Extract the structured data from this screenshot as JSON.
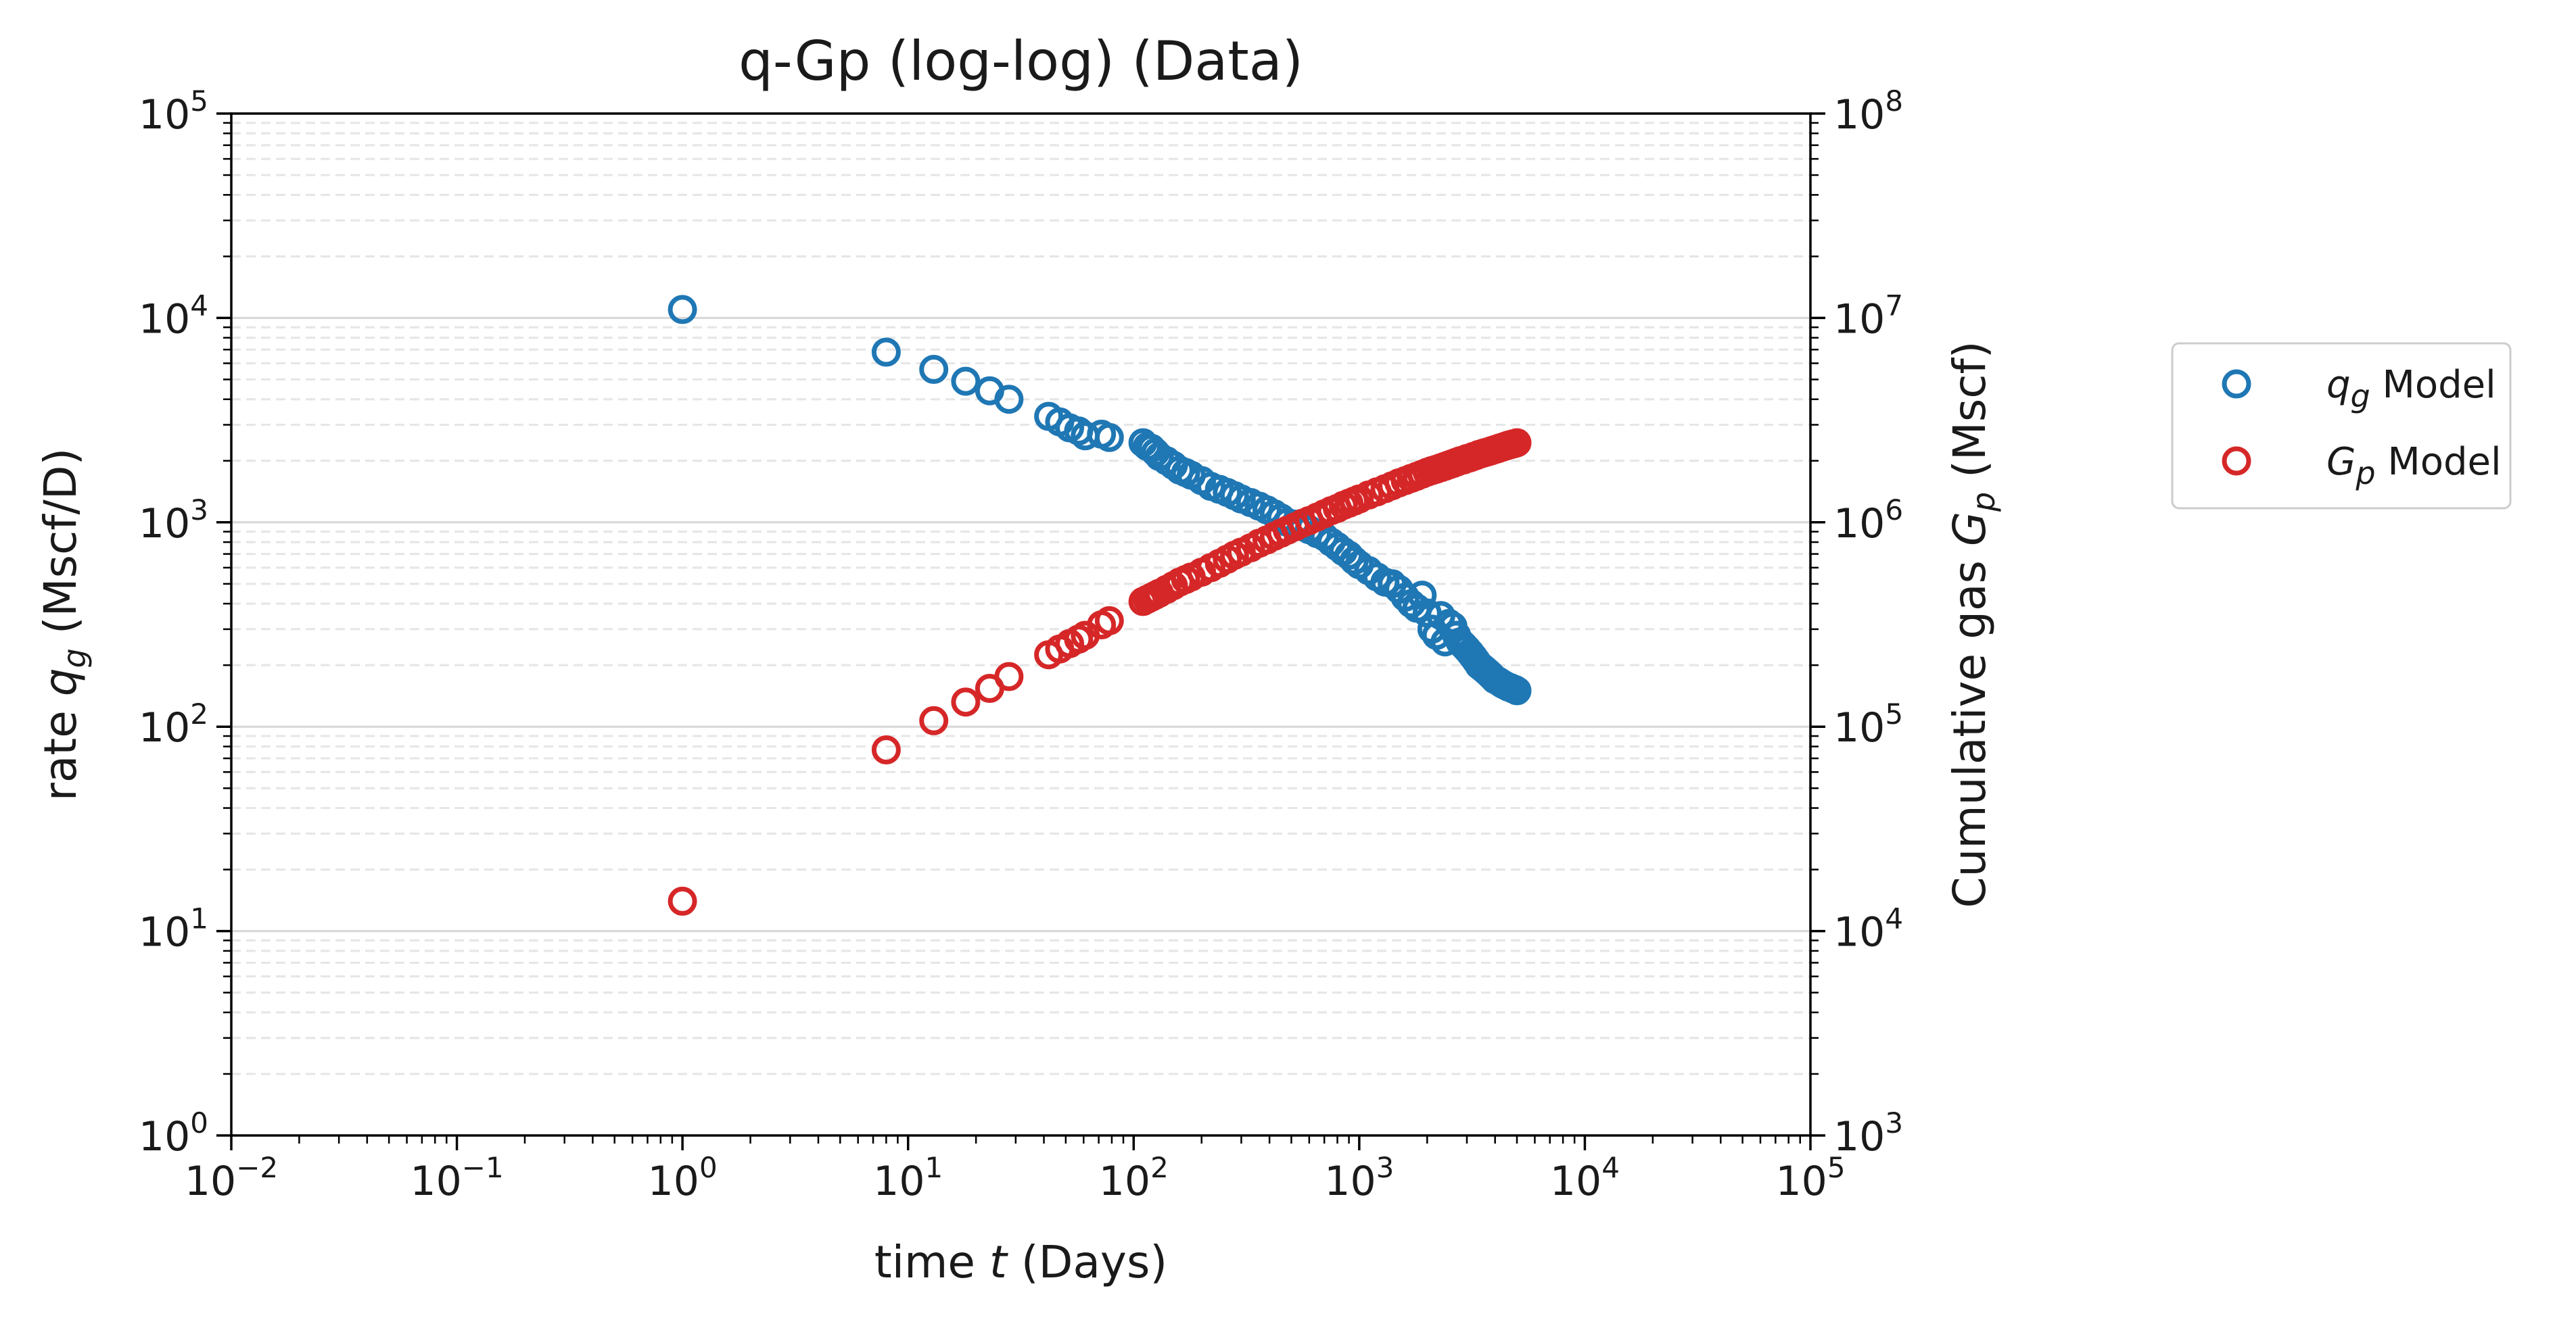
{
  "chart_data": {
    "type": "scatter",
    "title": "q-Gp (log-log) (Data)",
    "xlabel": {
      "prefix": "time ",
      "var": "t",
      "sub": "",
      "suffix": " (Days)"
    },
    "ylabel_left": {
      "prefix": "rate ",
      "var": "q",
      "sub": "g",
      "suffix": " (Mscf/D)"
    },
    "ylabel_right": {
      "prefix": "Cumulative gas ",
      "var": "G",
      "sub": "p",
      "suffix": " (Mscf)"
    },
    "x_scale": "log",
    "y_scale": "log",
    "xlim": [
      0.01,
      100000
    ],
    "ylim_left": [
      1,
      100000
    ],
    "ylim_right": [
      1000,
      100000000
    ],
    "x_ticks": [
      {
        "base": "10",
        "exp": "−2"
      },
      {
        "base": "10",
        "exp": "−1"
      },
      {
        "base": "10",
        "exp": "0"
      },
      {
        "base": "10",
        "exp": "1"
      },
      {
        "base": "10",
        "exp": "2"
      },
      {
        "base": "10",
        "exp": "3"
      },
      {
        "base": "10",
        "exp": "4"
      },
      {
        "base": "10",
        "exp": "5"
      }
    ],
    "y_left_ticks": [
      {
        "base": "10",
        "exp": "0"
      },
      {
        "base": "10",
        "exp": "1"
      },
      {
        "base": "10",
        "exp": "2"
      },
      {
        "base": "10",
        "exp": "3"
      },
      {
        "base": "10",
        "exp": "4"
      },
      {
        "base": "10",
        "exp": "5"
      }
    ],
    "y_right_ticks": [
      {
        "base": "10",
        "exp": "3"
      },
      {
        "base": "10",
        "exp": "4"
      },
      {
        "base": "10",
        "exp": "5"
      },
      {
        "base": "10",
        "exp": "6"
      },
      {
        "base": "10",
        "exp": "7"
      },
      {
        "base": "10",
        "exp": "8"
      }
    ],
    "grid": true,
    "legend_position": "outside-right",
    "series": [
      {
        "name_var": "q",
        "name_sub": "g",
        "name_suffix": " Model",
        "axis": "left",
        "color": "#1f77b4",
        "marker": "open-circle",
        "x": [
          1,
          8,
          13,
          18,
          23,
          28,
          42,
          47,
          52,
          57,
          61,
          72,
          78,
          110,
          115,
          120,
          125,
          130,
          140,
          150,
          160,
          170,
          180,
          200,
          220,
          240,
          260,
          280,
          300,
          330,
          360,
          390,
          420,
          450,
          480,
          520,
          560,
          600,
          650,
          700,
          750,
          800,
          850,
          900,
          950,
          1000,
          1100,
          1200,
          1300,
          1400,
          1500,
          1600,
          1700,
          1800,
          1900,
          2000,
          2100,
          2200,
          2300,
          2400,
          2500,
          2600,
          2700,
          2800,
          2900,
          3000,
          3100,
          3200,
          3300,
          3400,
          3500,
          3600,
          3700,
          3800,
          3900,
          4000,
          4100,
          4200,
          4300,
          4400,
          4500,
          4600,
          4700,
          4800,
          4900,
          5000
        ],
        "y": [
          11000,
          6800,
          5600,
          4900,
          4400,
          4000,
          3300,
          3100,
          2900,
          2800,
          2650,
          2700,
          2600,
          2450,
          2350,
          2300,
          2200,
          2100,
          2000,
          1900,
          1800,
          1750,
          1700,
          1600,
          1500,
          1450,
          1400,
          1350,
          1300,
          1250,
          1200,
          1150,
          1100,
          1050,
          1000,
          980,
          950,
          920,
          880,
          850,
          800,
          760,
          720,
          690,
          650,
          620,
          580,
          540,
          510,
          500,
          470,
          430,
          400,
          380,
          440,
          360,
          300,
          280,
          350,
          260,
          320,
          310,
          280,
          260,
          250,
          240,
          230,
          220,
          210,
          200,
          195,
          190,
          185,
          180,
          175,
          170,
          168,
          165,
          162,
          160,
          158,
          156,
          155,
          153,
          152,
          150
        ]
      },
      {
        "name_var": "G",
        "name_sub": "p",
        "name_suffix": " Model",
        "axis": "right",
        "color": "#d62728",
        "marker": "open-circle",
        "x": [
          1,
          8,
          13,
          18,
          23,
          28,
          42,
          47,
          52,
          57,
          61,
          72,
          78,
          110,
          115,
          120,
          125,
          130,
          140,
          150,
          160,
          170,
          180,
          200,
          220,
          240,
          260,
          280,
          300,
          330,
          360,
          390,
          420,
          450,
          480,
          520,
          560,
          600,
          650,
          700,
          750,
          800,
          850,
          900,
          950,
          1000,
          1100,
          1200,
          1300,
          1400,
          1500,
          1600,
          1700,
          1800,
          1900,
          2000,
          2100,
          2200,
          2300,
          2400,
          2500,
          2600,
          2700,
          2800,
          2900,
          3000,
          3100,
          3200,
          3300,
          3400,
          3500,
          3600,
          3700,
          3800,
          3900,
          4000,
          4100,
          4200,
          4300,
          4400,
          4500,
          4600,
          4700,
          4800,
          4900,
          5000
        ],
        "y": [
          14000,
          77000,
          107000,
          132000,
          154000,
          176000,
          225000,
          240000,
          255000,
          268000,
          280000,
          315000,
          330000,
          410000,
          420000,
          430000,
          440000,
          450000,
          470000,
          490000,
          510000,
          525000,
          540000,
          570000,
          600000,
          630000,
          660000,
          690000,
          715000,
          750000,
          790000,
          820000,
          855000,
          885000,
          915000,
          950000,
          990000,
          1020000,
          1060000,
          1100000,
          1140000,
          1170000,
          1210000,
          1240000,
          1270000,
          1300000,
          1360000,
          1410000,
          1460000,
          1510000,
          1560000,
          1600000,
          1640000,
          1680000,
          1720000,
          1760000,
          1790000,
          1820000,
          1850000,
          1880000,
          1910000,
          1940000,
          1970000,
          2000000,
          2020000,
          2050000,
          2070000,
          2100000,
          2120000,
          2150000,
          2170000,
          2190000,
          2210000,
          2230000,
          2250000,
          2270000,
          2290000,
          2310000,
          2330000,
          2350000,
          2370000,
          2390000,
          2400000,
          2420000,
          2430000,
          2450000
        ]
      }
    ]
  }
}
